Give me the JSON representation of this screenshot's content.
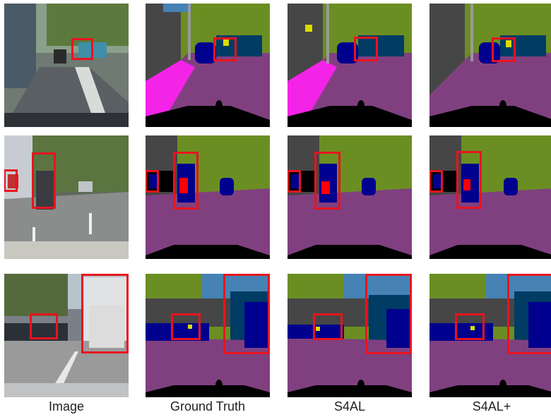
{
  "columns": [
    {
      "key": "image",
      "label": "Image"
    },
    {
      "key": "gt",
      "label": "Ground Truth"
    },
    {
      "key": "s4al",
      "label": "S4AL"
    },
    {
      "key": "s4alplus",
      "label": "S4AL+"
    }
  ],
  "rows": 3,
  "colors": {
    "road": "#804080",
    "sidewalk": "#f423e8",
    "vegetation": "#6b8e23",
    "sky": "#4682b4",
    "building": "#464646",
    "car": "#00008e",
    "truck_bus": "#003c64",
    "person": "#dc143c",
    "rider": "#ff0000",
    "sign": "#dcdc00",
    "pole": "#999999",
    "highlight": "#e8141e"
  }
}
